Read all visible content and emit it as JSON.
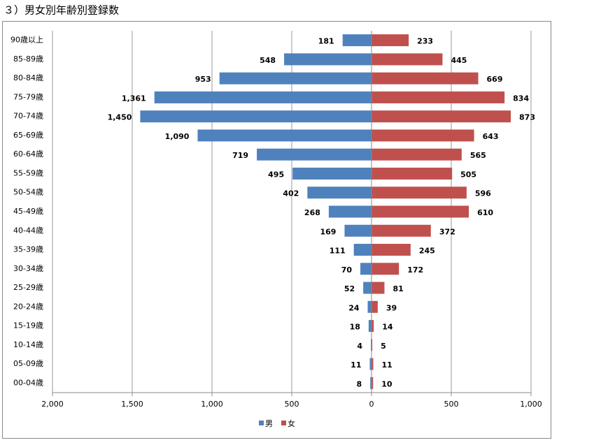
{
  "chart_data": {
    "type": "pyramid",
    "title": "３）男女別年齢別登録数",
    "categories": [
      "90歳以上",
      "85-89歳",
      "80-84歳",
      "75-79歳",
      "70-74歳",
      "65-69歳",
      "60-64歳",
      "55-59歳",
      "50-54歳",
      "45-49歳",
      "40-44歳",
      "35-39歳",
      "30-34歳",
      "25-29歳",
      "20-24歳",
      "15-19歳",
      "10-14歳",
      "05-09歳",
      "00-04歳"
    ],
    "series": [
      {
        "name": "男",
        "color": "#4f81bd",
        "values": [
          -181,
          -548,
          -953,
          -1361,
          -1450,
          -1090,
          -719,
          -495,
          -402,
          -268,
          -169,
          -111,
          -70,
          -52,
          -24,
          -18,
          -4,
          -11,
          -8
        ],
        "value_labels": [
          "181",
          "548",
          "953",
          "1,361",
          "1,450",
          "1,090",
          "719",
          "495",
          "402",
          "268",
          "169",
          "111",
          "70",
          "52",
          "24",
          "18",
          "4",
          "11",
          "8"
        ]
      },
      {
        "name": "女",
        "color": "#c0504d",
        "values": [
          233,
          445,
          669,
          834,
          873,
          643,
          565,
          505,
          596,
          610,
          372,
          245,
          172,
          81,
          39,
          14,
          5,
          11,
          10
        ],
        "value_labels": [
          "233",
          "445",
          "669",
          "834",
          "873",
          "643",
          "565",
          "505",
          "596",
          "610",
          "372",
          "245",
          "172",
          "81",
          "39",
          "14",
          "5",
          "11",
          "10"
        ]
      }
    ],
    "xlim": [
      -2000,
      1000
    ],
    "xticks": [
      {
        "value": -2000,
        "label": "2,000"
      },
      {
        "value": -1500,
        "label": "1,500"
      },
      {
        "value": -1000,
        "label": "1,000"
      },
      {
        "value": -500,
        "label": "500"
      },
      0,
      500,
      {
        "value": 1000,
        "label": "1,000"
      }
    ],
    "grid": true,
    "legend": "bottom"
  }
}
